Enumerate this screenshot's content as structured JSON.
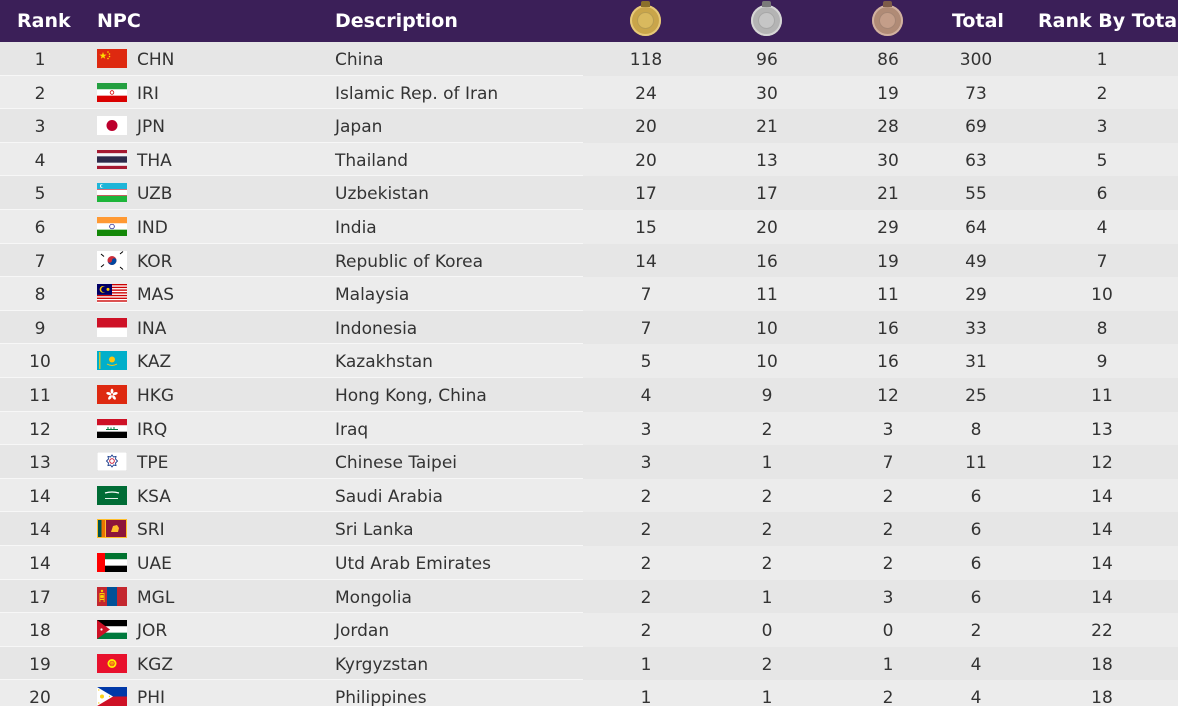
{
  "header": {
    "rank": "Rank",
    "npc": "NPC",
    "description": "Description",
    "gold_icon": "gold-medal-icon",
    "silver_icon": "silver-medal-icon",
    "bronze_icon": "bronze-medal-icon",
    "total": "Total",
    "rank_by_total": "Rank By Total"
  },
  "colors": {
    "header_bg": "#3b1f58",
    "gold": "#c9a54a",
    "silver": "#b4b4b4",
    "bronze": "#b08b76"
  },
  "rows": [
    {
      "rank": "1",
      "flag": "china-flag-icon",
      "code": "CHN",
      "description": "China",
      "gold": "118",
      "silver": "96",
      "bronze": "86",
      "total": "300",
      "rank_by_total": "1"
    },
    {
      "rank": "2",
      "flag": "iran-flag-icon",
      "code": "IRI",
      "description": "Islamic Rep. of Iran",
      "gold": "24",
      "silver": "30",
      "bronze": "19",
      "total": "73",
      "rank_by_total": "2"
    },
    {
      "rank": "3",
      "flag": "japan-flag-icon",
      "code": "JPN",
      "description": "Japan",
      "gold": "20",
      "silver": "21",
      "bronze": "28",
      "total": "69",
      "rank_by_total": "3"
    },
    {
      "rank": "4",
      "flag": "thailand-flag-icon",
      "code": "THA",
      "description": "Thailand",
      "gold": "20",
      "silver": "13",
      "bronze": "30",
      "total": "63",
      "rank_by_total": "5"
    },
    {
      "rank": "5",
      "flag": "uzbekistan-flag-icon",
      "code": "UZB",
      "description": "Uzbekistan",
      "gold": "17",
      "silver": "17",
      "bronze": "21",
      "total": "55",
      "rank_by_total": "6"
    },
    {
      "rank": "6",
      "flag": "india-flag-icon",
      "code": "IND",
      "description": "India",
      "gold": "15",
      "silver": "20",
      "bronze": "29",
      "total": "64",
      "rank_by_total": "4"
    },
    {
      "rank": "7",
      "flag": "korea-flag-icon",
      "code": "KOR",
      "description": "Republic of Korea",
      "gold": "14",
      "silver": "16",
      "bronze": "19",
      "total": "49",
      "rank_by_total": "7"
    },
    {
      "rank": "8",
      "flag": "malaysia-flag-icon",
      "code": "MAS",
      "description": "Malaysia",
      "gold": "7",
      "silver": "11",
      "bronze": "11",
      "total": "29",
      "rank_by_total": "10"
    },
    {
      "rank": "9",
      "flag": "indonesia-flag-icon",
      "code": "INA",
      "description": "Indonesia",
      "gold": "7",
      "silver": "10",
      "bronze": "16",
      "total": "33",
      "rank_by_total": "8"
    },
    {
      "rank": "10",
      "flag": "kazakhstan-flag-icon",
      "code": "KAZ",
      "description": "Kazakhstan",
      "gold": "5",
      "silver": "10",
      "bronze": "16",
      "total": "31",
      "rank_by_total": "9"
    },
    {
      "rank": "11",
      "flag": "hong-kong-flag-icon",
      "code": "HKG",
      "description": "Hong Kong, China",
      "gold": "4",
      "silver": "9",
      "bronze": "12",
      "total": "25",
      "rank_by_total": "11"
    },
    {
      "rank": "12",
      "flag": "iraq-flag-icon",
      "code": "IRQ",
      "description": "Iraq",
      "gold": "3",
      "silver": "2",
      "bronze": "3",
      "total": "8",
      "rank_by_total": "13"
    },
    {
      "rank": "13",
      "flag": "chinese-taipei-flag-icon",
      "code": "TPE",
      "description": "Chinese Taipei",
      "gold": "3",
      "silver": "1",
      "bronze": "7",
      "total": "11",
      "rank_by_total": "12"
    },
    {
      "rank": "14",
      "flag": "saudi-arabia-flag-icon",
      "code": "KSA",
      "description": "Saudi Arabia",
      "gold": "2",
      "silver": "2",
      "bronze": "2",
      "total": "6",
      "rank_by_total": "14"
    },
    {
      "rank": "14",
      "flag": "sri-lanka-flag-icon",
      "code": "SRI",
      "description": "Sri Lanka",
      "gold": "2",
      "silver": "2",
      "bronze": "2",
      "total": "6",
      "rank_by_total": "14"
    },
    {
      "rank": "14",
      "flag": "uae-flag-icon",
      "code": "UAE",
      "description": "Utd Arab Emirates",
      "gold": "2",
      "silver": "2",
      "bronze": "2",
      "total": "6",
      "rank_by_total": "14"
    },
    {
      "rank": "17",
      "flag": "mongolia-flag-icon",
      "code": "MGL",
      "description": "Mongolia",
      "gold": "2",
      "silver": "1",
      "bronze": "3",
      "total": "6",
      "rank_by_total": "14"
    },
    {
      "rank": "18",
      "flag": "jordan-flag-icon",
      "code": "JOR",
      "description": "Jordan",
      "gold": "2",
      "silver": "0",
      "bronze": "0",
      "total": "2",
      "rank_by_total": "22"
    },
    {
      "rank": "19",
      "flag": "kyrgyzstan-flag-icon",
      "code": "KGZ",
      "description": "Kyrgyzstan",
      "gold": "1",
      "silver": "2",
      "bronze": "1",
      "total": "4",
      "rank_by_total": "18"
    },
    {
      "rank": "20",
      "flag": "philippines-flag-icon",
      "code": "PHI",
      "description": "Philippines",
      "gold": "1",
      "silver": "1",
      "bronze": "2",
      "total": "4",
      "rank_by_total": "18"
    }
  ]
}
